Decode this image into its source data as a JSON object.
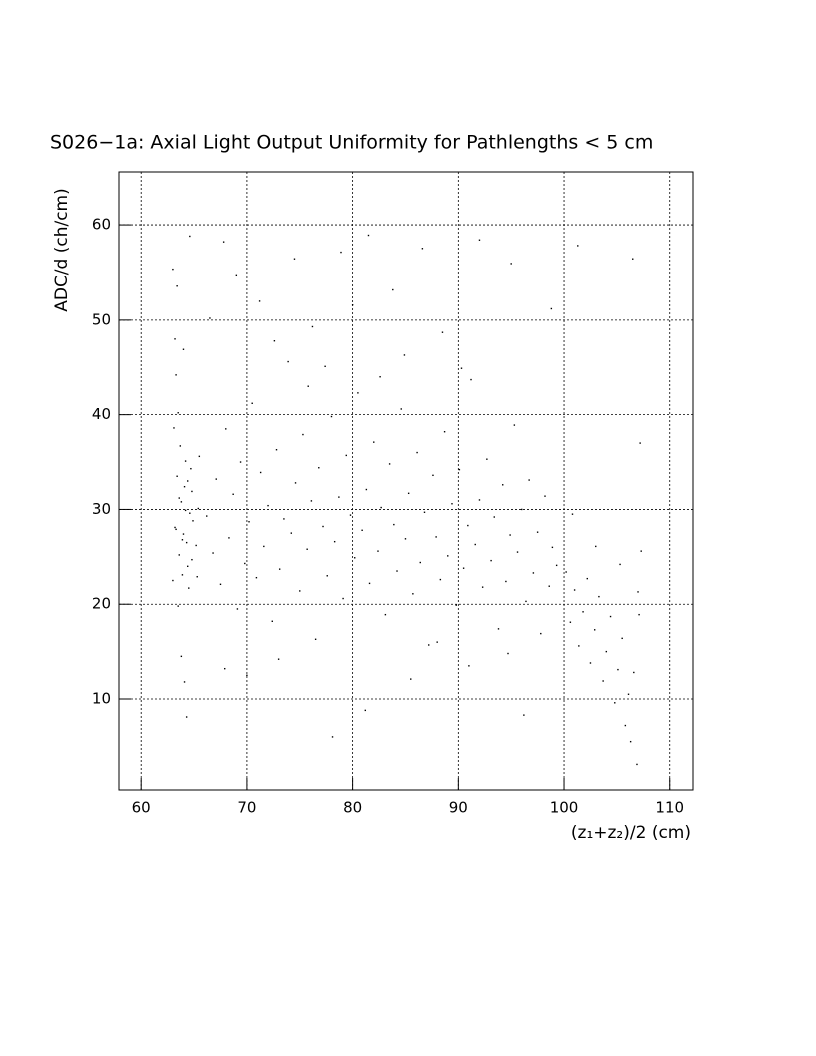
{
  "chart_data": {
    "type": "scatter",
    "title": "S026−1a: Axial Light Output Uniformity for Pathlengths < 5 cm",
    "x_label": "(z₁+z₂)/2 (cm)",
    "y_label": "ADC/d (ch/cm)",
    "xlim": [
      57.9,
      112.2
    ],
    "xticks": [
      60,
      70,
      80,
      90,
      100,
      110
    ],
    "ylim": [
      0.4,
      65.6
    ],
    "yticks": [
      10,
      20,
      30,
      40,
      50,
      60
    ],
    "grid": true,
    "color": "#000000",
    "x": [
      63.0,
      63.2,
      63.4,
      63.6,
      63.8,
      64.0,
      64.2,
      64.4,
      64.6,
      64.8,
      63.1,
      63.3,
      63.5,
      63.7,
      63.9,
      64.1,
      64.3,
      64.5,
      64.7,
      64.9,
      63.0,
      63.2,
      63.8,
      64.1,
      64.3,
      63.5,
      64.0,
      63.4,
      64.6,
      65.2,
      65.4,
      65.3,
      65.5,
      63.6,
      64.2,
      63.9,
      64.4,
      63.3,
      64.8,
      66.2,
      66.8,
      67.1,
      67.5,
      68.0,
      68.3,
      68.7,
      69.1,
      69.4,
      69.8,
      70.2,
      70.5,
      70.9,
      71.3,
      71.6,
      72.0,
      72.4,
      72.8,
      73.1,
      73.5,
      73.9,
      74.2,
      74.6,
      75.0,
      75.3,
      75.7,
      76.1,
      76.5,
      76.8,
      77.2,
      77.6,
      78.0,
      78.3,
      78.7,
      79.1,
      79.4,
      79.8,
      80.2,
      80.5,
      80.9,
      81.3,
      81.6,
      82.0,
      82.4,
      82.7,
      83.1,
      83.5,
      83.9,
      84.2,
      84.6,
      85.0,
      85.3,
      85.7,
      86.1,
      86.4,
      86.8,
      87.2,
      87.6,
      87.9,
      88.3,
      88.7,
      89.0,
      89.4,
      89.8,
      90.1,
      90.5,
      90.9,
      91.2,
      91.6,
      92.0,
      92.3,
      92.7,
      93.1,
      93.4,
      93.8,
      94.2,
      94.5,
      94.9,
      95.3,
      95.6,
      96.0,
      96.4,
      96.7,
      97.1,
      97.5,
      97.8,
      98.2,
      98.6,
      98.9,
      99.3,
      67.8,
      69.0,
      71.2,
      74.5,
      76.2,
      78.9,
      80.0,
      81.5,
      83.8,
      86.6,
      88.5,
      92.0,
      95.0,
      98.8,
      106.5,
      72.6,
      77.4,
      84.9,
      90.3,
      66.5,
      101.3,
      75.8,
      82.6,
      70.0,
      73.0,
      78.1,
      81.2,
      85.5,
      91.0,
      96.2,
      67.9,
      88.0,
      94.7,
      100.2,
      100.6,
      101.0,
      101.4,
      101.8,
      102.2,
      102.5,
      102.9,
      103.3,
      103.7,
      104.0,
      104.4,
      104.8,
      105.1,
      105.5,
      105.8,
      106.1,
      106.3,
      106.6,
      106.9,
      107.1,
      107.3,
      107.0,
      105.3,
      103.0,
      107.2,
      100.8
    ],
    "values": [
      22.5,
      28.1,
      33.5,
      25.2,
      30.8,
      27.4,
      35.1,
      24.0,
      29.6,
      31.9,
      38.6,
      44.2,
      19.8,
      36.7,
      23.1,
      32.4,
      26.5,
      21.7,
      34.3,
      28.8,
      55.3,
      48.0,
      14.5,
      11.8,
      8.1,
      40.2,
      46.9,
      53.6,
      58.8,
      26.2,
      30.1,
      22.9,
      35.6,
      31.2,
      29.9,
      26.8,
      33.0,
      27.9,
      24.7,
      29.3,
      25.4,
      33.2,
      22.1,
      38.5,
      27.0,
      31.6,
      19.5,
      35.0,
      24.3,
      28.7,
      41.2,
      22.8,
      33.9,
      26.1,
      30.4,
      18.2,
      36.3,
      23.7,
      29.0,
      45.6,
      27.5,
      32.8,
      21.4,
      37.9,
      25.8,
      30.9,
      16.3,
      34.4,
      28.2,
      23.0,
      39.8,
      26.6,
      31.3,
      20.6,
      35.7,
      29.4,
      24.9,
      42.3,
      27.8,
      32.1,
      22.2,
      37.1,
      25.6,
      30.2,
      18.9,
      34.8,
      28.4,
      23.5,
      40.6,
      26.9,
      31.7,
      21.1,
      36.0,
      24.4,
      29.7,
      15.7,
      33.6,
      27.1,
      22.6,
      38.2,
      25.1,
      30.6,
      19.9,
      34.2,
      23.8,
      28.3,
      43.7,
      26.3,
      31.0,
      21.8,
      35.3,
      24.6,
      29.2,
      17.4,
      32.6,
      22.4,
      27.3,
      38.9,
      25.5,
      30.0,
      20.3,
      33.1,
      23.3,
      27.6,
      16.9,
      31.4,
      21.9,
      26.0,
      24.1,
      58.2,
      54.7,
      52.0,
      56.4,
      49.3,
      57.1,
      51.6,
      58.9,
      53.2,
      57.5,
      48.7,
      58.4,
      55.9,
      51.2,
      56.4,
      47.8,
      45.1,
      46.3,
      44.9,
      50.2,
      57.8,
      43.0,
      44.0,
      12.5,
      14.2,
      6.0,
      8.8,
      12.1,
      13.5,
      8.3,
      13.2,
      16.0,
      14.8,
      23.4,
      18.1,
      21.5,
      15.6,
      19.2,
      22.7,
      13.8,
      17.3,
      20.8,
      11.9,
      15.0,
      18.7,
      9.6,
      13.1,
      16.4,
      7.2,
      10.5,
      5.5,
      12.8,
      3.1,
      18.9,
      25.6,
      21.3,
      24.2,
      26.1,
      37.0,
      29.5
    ]
  }
}
